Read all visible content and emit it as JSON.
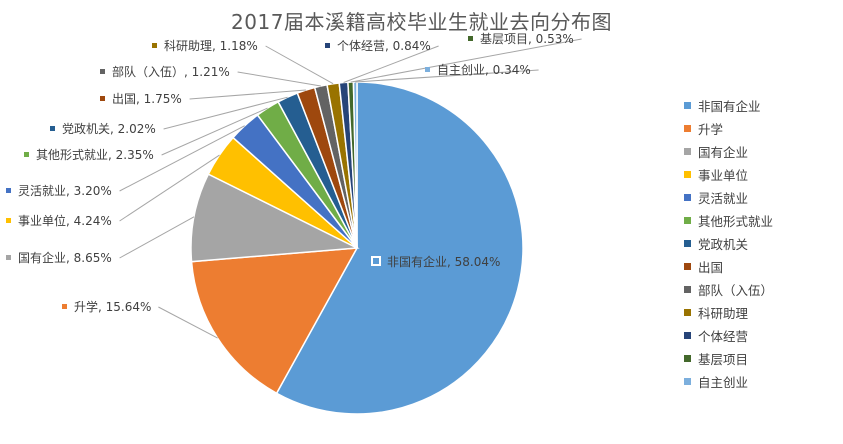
{
  "chart_data": {
    "type": "pie",
    "title": "2017届本溪籍高校毕业生就业去向分布图",
    "start_angle_deg": 0,
    "direction": "clockwise",
    "legend_position": "right",
    "slices": [
      {
        "name": "非国有企业",
        "value": 58.04,
        "label": "非国有企业, 58.04%",
        "color": "#5B9BD5"
      },
      {
        "name": "升学",
        "value": 15.64,
        "label": "升学, 15.64%",
        "color": "#ED7D31"
      },
      {
        "name": "国有企业",
        "value": 8.65,
        "label": "国有企业, 8.65%",
        "color": "#A5A5A5"
      },
      {
        "name": "事业单位",
        "value": 4.24,
        "label": "事业单位, 4.24%",
        "color": "#FFC000"
      },
      {
        "name": "灵活就业",
        "value": 3.2,
        "label": "灵活就业, 3.20%",
        "color": "#4472C4"
      },
      {
        "name": "其他形式就业",
        "value": 2.35,
        "label": "其他形式就业, 2.35%",
        "color": "#70AD47"
      },
      {
        "name": "党政机关",
        "value": 2.02,
        "label": "党政机关, 2.02%",
        "color": "#255E91"
      },
      {
        "name": "出国",
        "value": 1.75,
        "label": "出国, 1.75%",
        "color": "#9E480E"
      },
      {
        "name": "部队（入伍）",
        "value": 1.21,
        "label": "部队（入伍）, 1.21%",
        "color": "#636363"
      },
      {
        "name": "科研助理",
        "value": 1.18,
        "label": "科研助理, 1.18%",
        "color": "#997300"
      },
      {
        "name": "个体经营",
        "value": 0.84,
        "label": "个体经营, 0.84%",
        "color": "#264478"
      },
      {
        "name": "基层项目",
        "value": 0.53,
        "label": "基层项目, 0.53%",
        "color": "#43682B"
      },
      {
        "name": "自主创业",
        "value": 0.34,
        "label": "自主创业, 0.34%",
        "color": "#7CAFDD"
      }
    ]
  }
}
